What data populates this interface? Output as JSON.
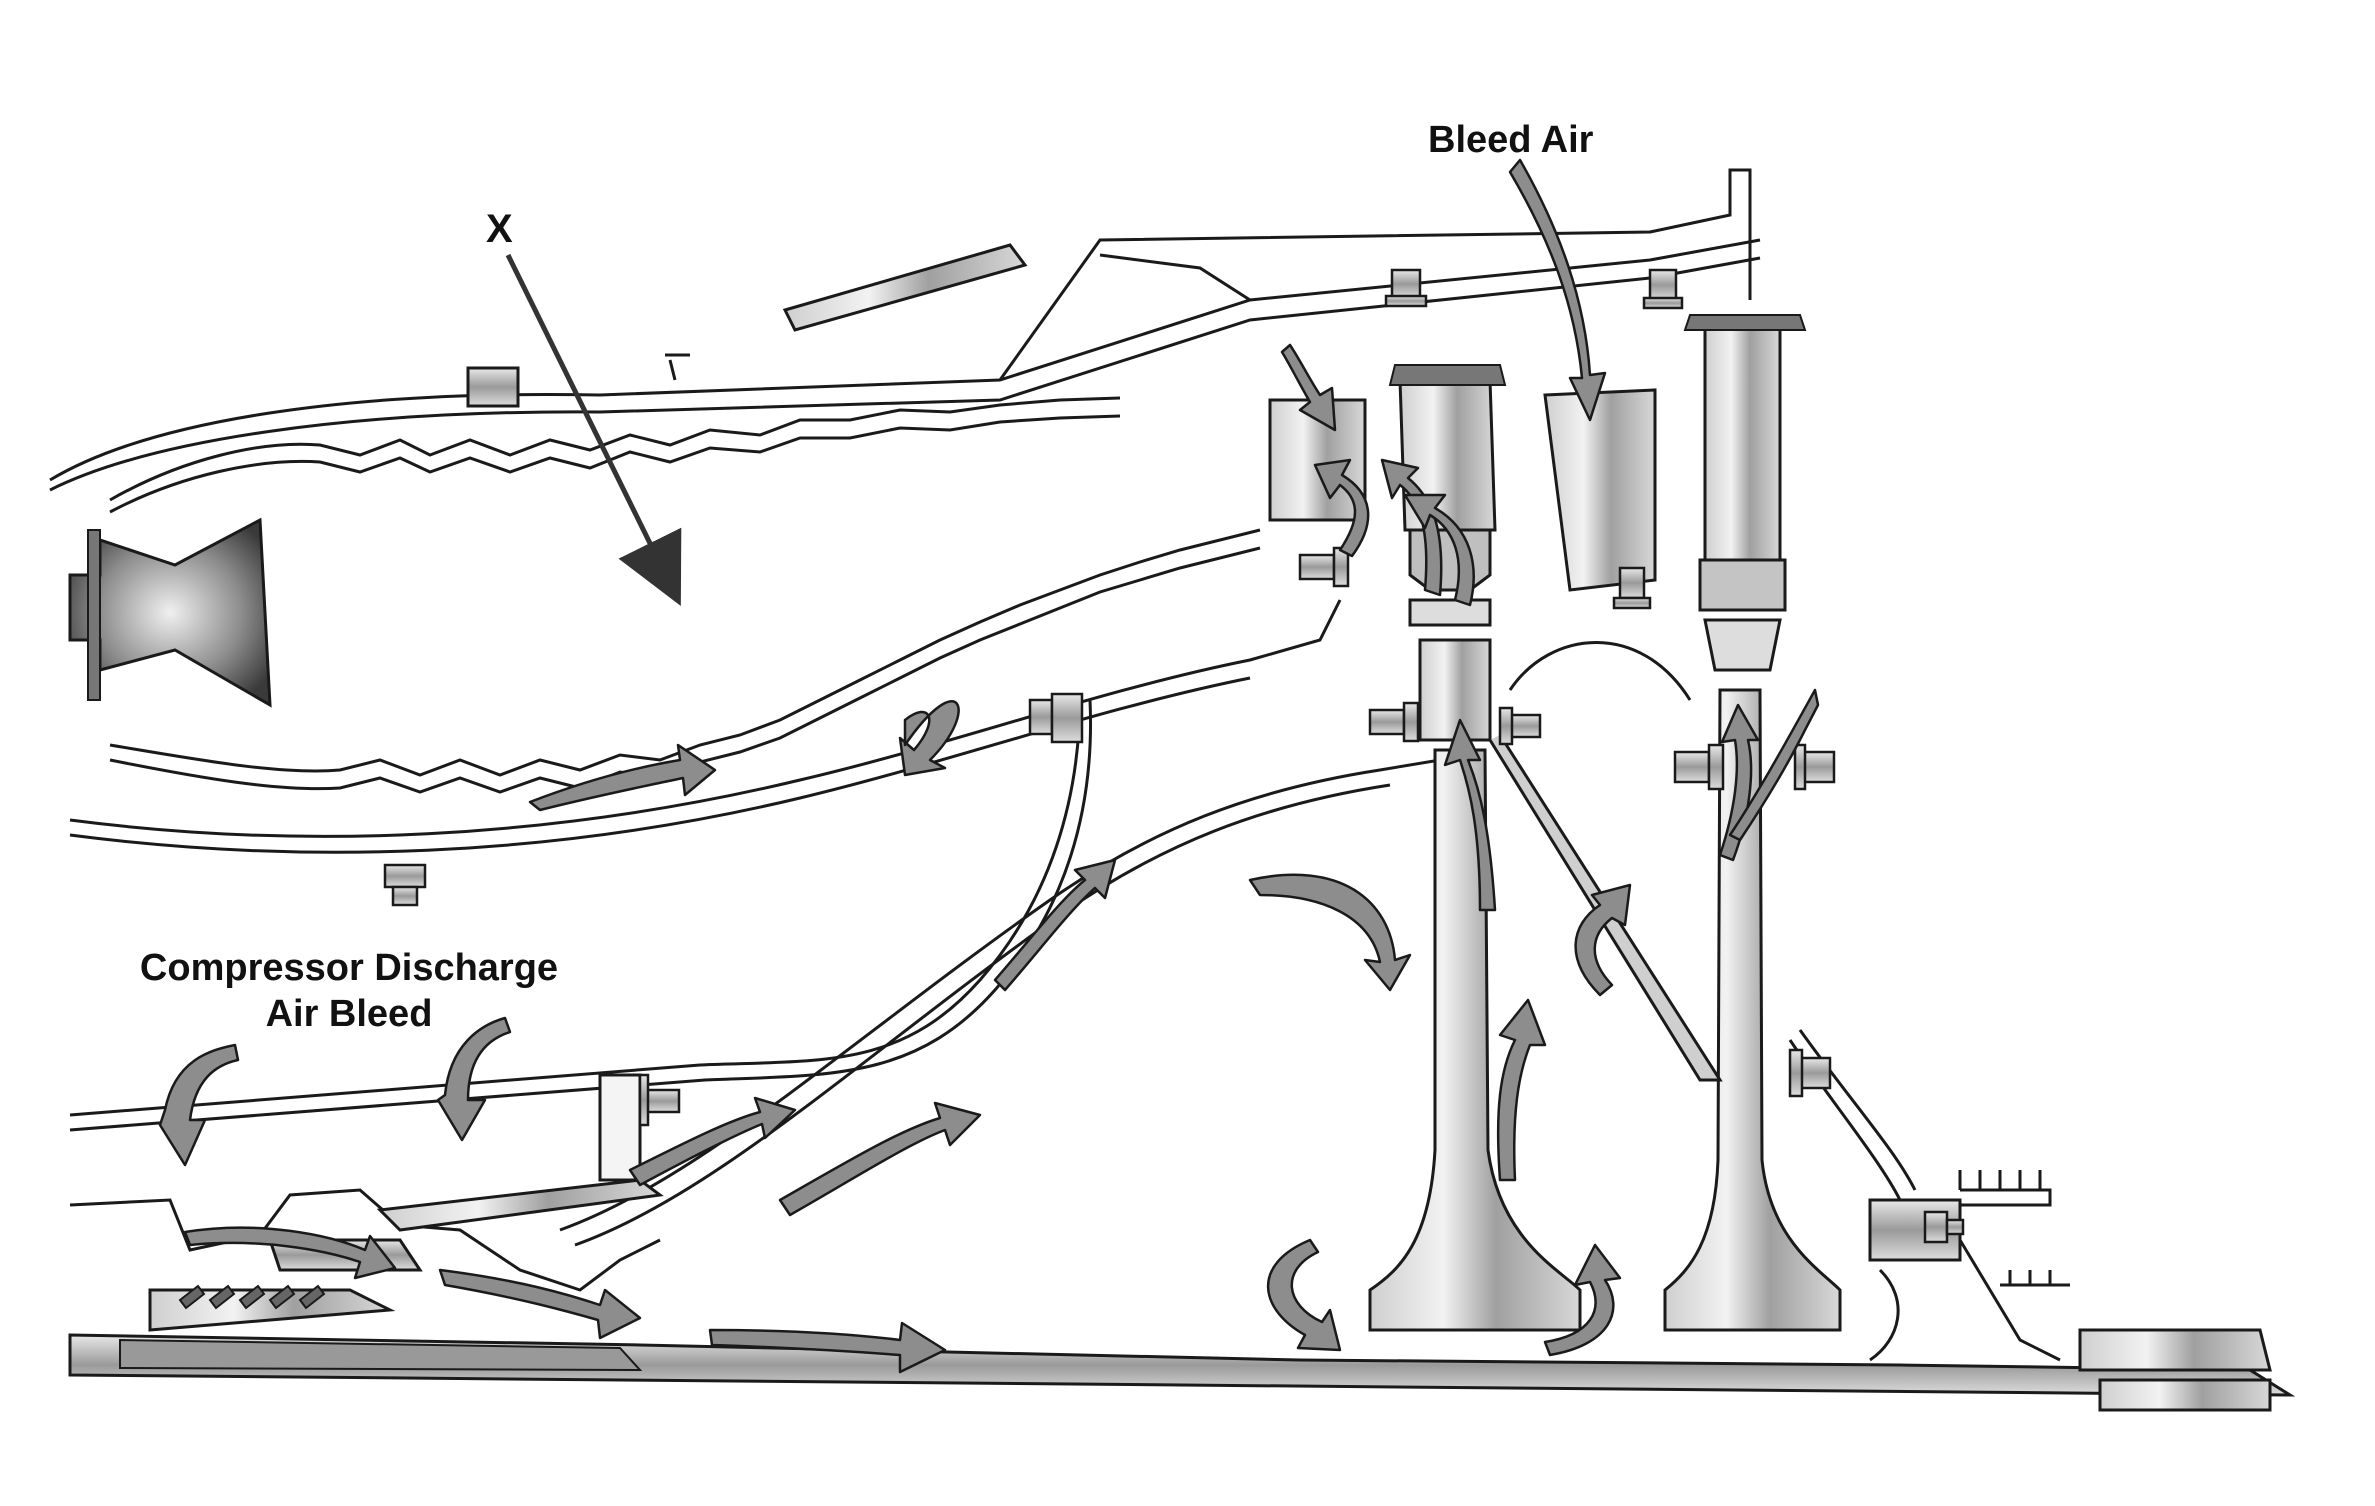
{
  "labels": {
    "x_marker": "X",
    "bleed_air": "Bleed Air",
    "compressor_line1": "Compressor Discharge",
    "compressor_line2": "Air Bleed"
  },
  "colors": {
    "line": "#1a1a1a",
    "metal_light": "#e2e2e2",
    "metal_mid": "#a9a9a9",
    "metal_dark": "#555555",
    "arrow_fill": "#8d8d8d",
    "background": "#ffffff"
  },
  "icons": [
    "flow-arrow-icon",
    "bolt-icon",
    "pointer-arrow-icon"
  ]
}
